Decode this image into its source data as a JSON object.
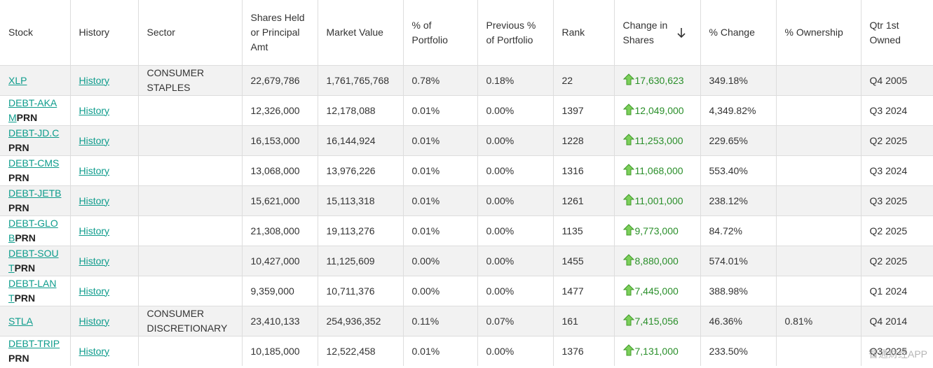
{
  "table": {
    "headers": [
      "Stock",
      "History",
      "Sector",
      "Shares Held or Principal Amt",
      "Market Value",
      "% of Portfolio",
      "Previous % of Portfolio",
      "Rank",
      "Change in Shares",
      "% Change",
      "% Ownership",
      "Qtr 1st Owned"
    ],
    "rows": [
      {
        "stock": {
          "ticker": "XLP",
          "suffix": null
        },
        "history": "History",
        "sector": "CONSUMER STAPLES",
        "shares": "22,679,786",
        "value": "1,761,765,768",
        "pct": "0.78%",
        "prev": "0.18%",
        "rank": "22",
        "change": "17,630,623",
        "pct_change": "349.18%",
        "ownership": null,
        "qtr": "Q4 2005"
      },
      {
        "stock": {
          "ticker": "DEBT-AKAM",
          "suffix": "PRN"
        },
        "history": "History",
        "sector": null,
        "shares": "12,326,000",
        "value": "12,178,088",
        "pct": "0.01%",
        "prev": "0.00%",
        "rank": "1397",
        "change": "12,049,000",
        "pct_change": "4,349.82%",
        "ownership": null,
        "qtr": "Q3 2024"
      },
      {
        "stock": {
          "ticker": "DEBT-JD.C",
          "suffix": "PRN"
        },
        "history": "History",
        "sector": null,
        "shares": "16,153,000",
        "value": "16,144,924",
        "pct": "0.01%",
        "prev": "0.00%",
        "rank": "1228",
        "change": "11,253,000",
        "pct_change": "229.65%",
        "ownership": null,
        "qtr": "Q2 2025"
      },
      {
        "stock": {
          "ticker": "DEBT-CMS",
          "suffix": "PRN"
        },
        "history": "History",
        "sector": null,
        "shares": "13,068,000",
        "value": "13,976,226",
        "pct": "0.01%",
        "prev": "0.00%",
        "rank": "1316",
        "change": "11,068,000",
        "pct_change": "553.40%",
        "ownership": null,
        "qtr": "Q3 2024"
      },
      {
        "stock": {
          "ticker": "DEBT-JETB",
          "suffix": "PRN"
        },
        "history": "History",
        "sector": null,
        "shares": "15,621,000",
        "value": "15,113,318",
        "pct": "0.01%",
        "prev": "0.00%",
        "rank": "1261",
        "change": "11,001,000",
        "pct_change": "238.12%",
        "ownership": null,
        "qtr": "Q3 2025"
      },
      {
        "stock": {
          "ticker": "DEBT-GLOB",
          "suffix": "PRN"
        },
        "history": "History",
        "sector": null,
        "shares": "21,308,000",
        "value": "19,113,276",
        "pct": "0.01%",
        "prev": "0.00%",
        "rank": "1135",
        "change": "9,773,000",
        "pct_change": "84.72%",
        "ownership": null,
        "qtr": "Q2 2025"
      },
      {
        "stock": {
          "ticker": "DEBT-SOUT",
          "suffix": "PRN"
        },
        "history": "History",
        "sector": null,
        "shares": "10,427,000",
        "value": "11,125,609",
        "pct": "0.00%",
        "prev": "0.00%",
        "rank": "1455",
        "change": "8,880,000",
        "pct_change": "574.01%",
        "ownership": null,
        "qtr": "Q2 2025"
      },
      {
        "stock": {
          "ticker": "DEBT-LANT",
          "suffix": "PRN"
        },
        "history": "History",
        "sector": null,
        "shares": "9,359,000",
        "value": "10,711,376",
        "pct": "0.00%",
        "prev": "0.00%",
        "rank": "1477",
        "change": "7,445,000",
        "pct_change": "388.98%",
        "ownership": null,
        "qtr": "Q1 2024"
      },
      {
        "stock": {
          "ticker": "STLA",
          "suffix": null
        },
        "history": "History",
        "sector": "CONSUMER DISCRETIONARY",
        "shares": "23,410,133",
        "value": "254,936,352",
        "pct": "0.11%",
        "prev": "0.07%",
        "rank": "161",
        "change": "7,415,056",
        "pct_change": "46.36%",
        "ownership": "0.81%",
        "qtr": "Q4 2014"
      },
      {
        "stock": {
          "ticker": "DEBT-TRIP",
          "suffix": "PRN"
        },
        "history": "History",
        "sector": null,
        "shares": "10,185,000",
        "value": "12,522,458",
        "pct": "0.01%",
        "prev": "0.00%",
        "rank": "1376",
        "change": "7,131,000",
        "pct_change": "233.50%",
        "ownership": null,
        "qtr": "Q3 2025"
      }
    ]
  },
  "watermark": "智通财经APP"
}
